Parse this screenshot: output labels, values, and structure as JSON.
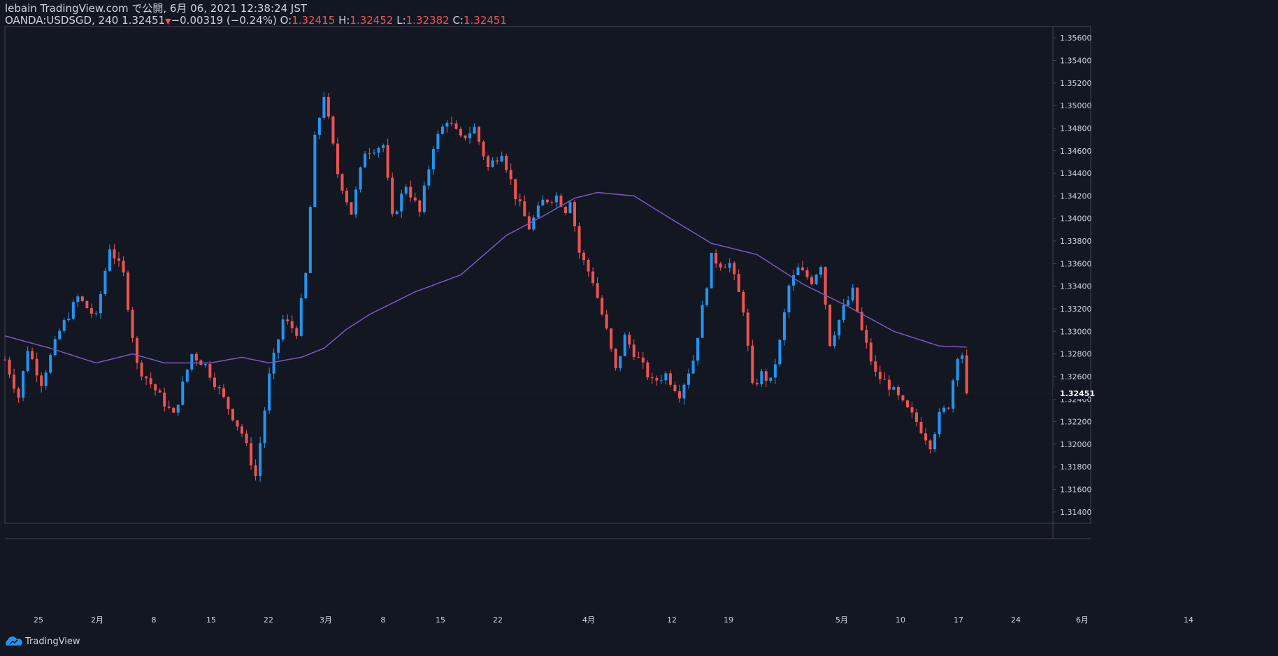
{
  "header": {
    "published_line": "lebain TradingView.com で公開, 6月 06, 2021 12:38:24 JST",
    "symbol": "OANDA:USDSGD, 240",
    "last": "1.32451",
    "change": "−0.00319 (−0.24%)",
    "o_label": "O:",
    "o_value": "1.32415",
    "h_label": "H:",
    "h_value": "1.32452",
    "l_label": "L:",
    "l_value": "1.32382",
    "c_label": "C:",
    "c_value": "1.32451"
  },
  "footer": {
    "brand": "TradingView",
    "icon": "tradingview-logo-icon"
  },
  "colors": {
    "background": "#131722",
    "up": "#2196f3",
    "down": "#ef5350",
    "ma": "#7e57c2",
    "axis_text": "#d1d4dc",
    "border": "#434651"
  },
  "chart_data": {
    "type": "candlestick",
    "symbol": "OANDA:USDSGD",
    "timeframe": "240",
    "ylim": [
      1.313,
      1.357
    ],
    "y_ticks": [
      "1.35600",
      "1.35400",
      "1.35200",
      "1.35000",
      "1.34800",
      "1.34600",
      "1.34400",
      "1.34200",
      "1.34000",
      "1.33800",
      "1.33600",
      "1.33400",
      "1.33200",
      "1.33000",
      "1.32800",
      "1.32600",
      "1.32400",
      "1.32200",
      "1.32000",
      "1.31800",
      "1.31600",
      "1.31400"
    ],
    "x_ticks": [
      "25",
      "2月",
      "8",
      "15",
      "22",
      "3月",
      "8",
      "15",
      "22",
      "4月",
      "12",
      "19",
      "5月",
      "10",
      "17",
      "24",
      "6月",
      "14"
    ],
    "last_price_label": "1.32451",
    "close_path": [
      {
        "x": 0,
        "y": 1.3275
      },
      {
        "x": 3,
        "y": 1.3242
      },
      {
        "x": 5,
        "y": 1.3285
      },
      {
        "x": 8,
        "y": 1.3255
      },
      {
        "x": 12,
        "y": 1.33
      },
      {
        "x": 16,
        "y": 1.333
      },
      {
        "x": 20,
        "y": 1.3312
      },
      {
        "x": 23,
        "y": 1.3375
      },
      {
        "x": 26,
        "y": 1.335
      },
      {
        "x": 29,
        "y": 1.327
      },
      {
        "x": 33,
        "y": 1.3248
      },
      {
        "x": 37,
        "y": 1.3225
      },
      {
        "x": 41,
        "y": 1.328
      },
      {
        "x": 44,
        "y": 1.327
      },
      {
        "x": 48,
        "y": 1.324
      },
      {
        "x": 52,
        "y": 1.321
      },
      {
        "x": 55,
        "y": 1.3172
      },
      {
        "x": 58,
        "y": 1.326
      },
      {
        "x": 61,
        "y": 1.331
      },
      {
        "x": 64,
        "y": 1.33
      },
      {
        "x": 66,
        "y": 1.335
      },
      {
        "x": 68,
        "y": 1.347
      },
      {
        "x": 70,
        "y": 1.351
      },
      {
        "x": 73,
        "y": 1.344
      },
      {
        "x": 76,
        "y": 1.3405
      },
      {
        "x": 79,
        "y": 1.346
      },
      {
        "x": 83,
        "y": 1.3465
      },
      {
        "x": 85,
        "y": 1.34
      },
      {
        "x": 88,
        "y": 1.343
      },
      {
        "x": 91,
        "y": 1.3405
      },
      {
        "x": 94,
        "y": 1.3465
      },
      {
        "x": 97,
        "y": 1.3488
      },
      {
        "x": 100,
        "y": 1.347
      },
      {
        "x": 103,
        "y": 1.348
      },
      {
        "x": 106,
        "y": 1.3445
      },
      {
        "x": 109,
        "y": 1.346
      },
      {
        "x": 112,
        "y": 1.342
      },
      {
        "x": 115,
        "y": 1.3392
      },
      {
        "x": 118,
        "y": 1.3415
      },
      {
        "x": 121,
        "y": 1.342
      },
      {
        "x": 123,
        "y": 1.3408
      },
      {
        "x": 124,
        "y": 1.3418
      },
      {
        "x": 126,
        "y": 1.337
      },
      {
        "x": 129,
        "y": 1.3345
      },
      {
        "x": 132,
        "y": 1.33
      },
      {
        "x": 134,
        "y": 1.3265
      },
      {
        "x": 136,
        "y": 1.3295
      },
      {
        "x": 139,
        "y": 1.3275
      },
      {
        "x": 142,
        "y": 1.3255
      },
      {
        "x": 145,
        "y": 1.3262
      },
      {
        "x": 148,
        "y": 1.3245
      },
      {
        "x": 151,
        "y": 1.3275
      },
      {
        "x": 153,
        "y": 1.332
      },
      {
        "x": 155,
        "y": 1.3365
      },
      {
        "x": 157,
        "y": 1.336
      },
      {
        "x": 159,
        "y": 1.336
      },
      {
        "x": 162,
        "y": 1.332
      },
      {
        "x": 164,
        "y": 1.325
      },
      {
        "x": 166,
        "y": 1.3262
      },
      {
        "x": 168,
        "y": 1.3255
      },
      {
        "x": 170,
        "y": 1.329
      },
      {
        "x": 172,
        "y": 1.334
      },
      {
        "x": 174,
        "y": 1.3355
      },
      {
        "x": 177,
        "y": 1.3345
      },
      {
        "x": 179,
        "y": 1.336
      },
      {
        "x": 181,
        "y": 1.329
      },
      {
        "x": 184,
        "y": 1.332
      },
      {
        "x": 186,
        "y": 1.3335
      },
      {
        "x": 188,
        "y": 1.33
      },
      {
        "x": 191,
        "y": 1.3262
      },
      {
        "x": 194,
        "y": 1.3252
      },
      {
        "x": 197,
        "y": 1.3235
      },
      {
        "x": 200,
        "y": 1.322
      },
      {
        "x": 203,
        "y": 1.32
      },
      {
        "x": 205,
        "y": 1.3225
      },
      {
        "x": 207,
        "y": 1.3235
      },
      {
        "x": 209,
        "y": 1.328
      },
      {
        "x": 210,
        "y": 1.328
      },
      {
        "x": 211,
        "y": 1.3245
      }
    ],
    "ma_path": [
      {
        "x": 0,
        "y": 1.3296
      },
      {
        "x": 10,
        "y": 1.3285
      },
      {
        "x": 20,
        "y": 1.3272
      },
      {
        "x": 28,
        "y": 1.328
      },
      {
        "x": 35,
        "y": 1.3272
      },
      {
        "x": 45,
        "y": 1.3272
      },
      {
        "x": 52,
        "y": 1.3277
      },
      {
        "x": 58,
        "y": 1.3272
      },
      {
        "x": 65,
        "y": 1.3277
      },
      {
        "x": 70,
        "y": 1.3285
      },
      {
        "x": 75,
        "y": 1.3302
      },
      {
        "x": 80,
        "y": 1.3315
      },
      {
        "x": 90,
        "y": 1.3335
      },
      {
        "x": 100,
        "y": 1.335
      },
      {
        "x": 110,
        "y": 1.3385
      },
      {
        "x": 118,
        "y": 1.3402
      },
      {
        "x": 125,
        "y": 1.3418
      },
      {
        "x": 130,
        "y": 1.3423
      },
      {
        "x": 138,
        "y": 1.342
      },
      {
        "x": 146,
        "y": 1.34
      },
      {
        "x": 155,
        "y": 1.3378
      },
      {
        "x": 165,
        "y": 1.3368
      },
      {
        "x": 175,
        "y": 1.3342
      },
      {
        "x": 185,
        "y": 1.3322
      },
      {
        "x": 195,
        "y": 1.33
      },
      {
        "x": 205,
        "y": 1.3287
      },
      {
        "x": 211,
        "y": 1.3286
      }
    ]
  }
}
